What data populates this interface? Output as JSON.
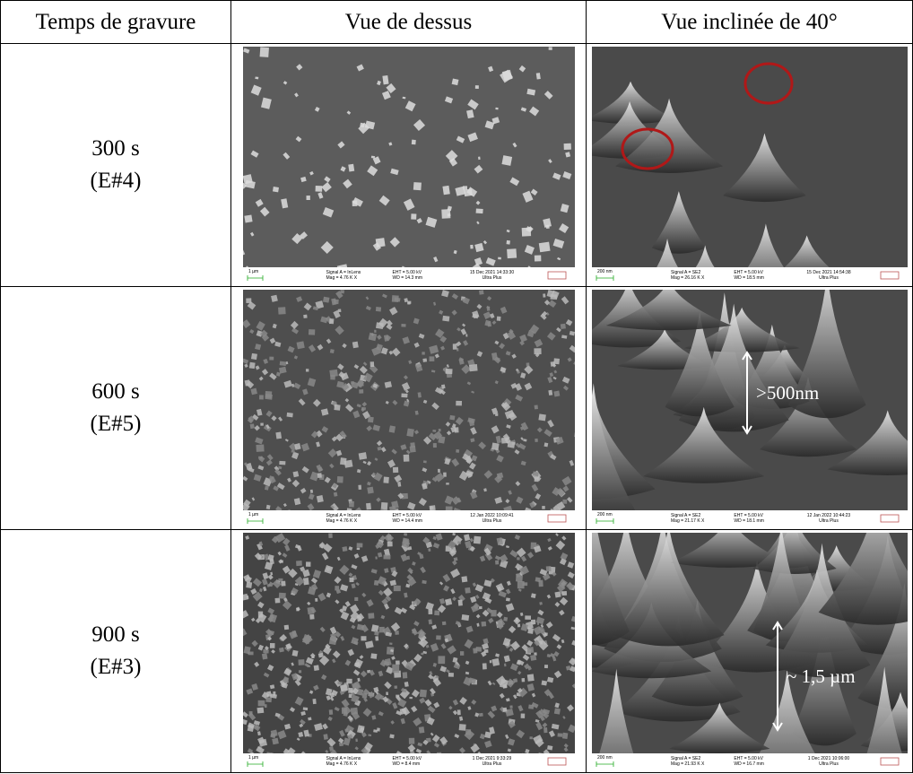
{
  "table": {
    "header": [
      "Temps de gravure",
      "Vue de dessus",
      "Vue inclinée de 40°"
    ],
    "rows": [
      {
        "time": "300 s",
        "sample": "(E#4)",
        "top_view": {
          "scale": "1 µm",
          "signal": "Signal A = InLens",
          "mag": "Mag =  4.76 K X",
          "eht": "EHT =  5.00 kV",
          "wd": "WD = 14.3 mm",
          "date": "15 Dec 2021 14:33:30",
          "instrument": "Ultra Plus"
        },
        "tilted_view": {
          "scale": "200 nm",
          "signal": "Signal A = SE2",
          "mag": "Mag =  26.16 K X",
          "eht": "EHT =  5.00 kV",
          "wd": "WD = 18.5 mm",
          "date": "15 Dec 2021 14:54:38",
          "instrument": "Ultra Plus"
        }
      },
      {
        "time": "600 s",
        "sample": "(E#5)",
        "top_view": {
          "scale": "1 µm",
          "signal": "Signal A = InLens",
          "mag": "Mag =  4.76 K X",
          "eht": "EHT =  5.00 kV",
          "wd": "WD = 14.4 mm",
          "date": "12 Jan 2022 10:09:41",
          "instrument": "Ultra Plus"
        },
        "tilted_view": {
          "scale": "200 nm",
          "signal": "Signal A = SE2",
          "mag": "Mag =  21.17 K X",
          "eht": "EHT =  5.00 kV",
          "wd": "WD = 18.1 mm",
          "date": "12 Jan 2022 10:44:23",
          "instrument": "Ultra Plus",
          "annotation": ">500nm"
        }
      },
      {
        "time": "900 s",
        "sample": "(E#3)",
        "top_view": {
          "scale": "1 µm",
          "signal": "Signal A = InLens",
          "mag": "Mag =  4.76 K X",
          "eht": "EHT =  5.00 kV",
          "wd": "WD = 8.4 mm",
          "date": "1 Dec 2021  9:33:29",
          "instrument": "Ultra Plus"
        },
        "tilted_view": {
          "scale": "200 nm",
          "signal": "Signal A = SE2",
          "mag": "Mag =  21.93 K X",
          "eht": "EHT =  5.00 kV",
          "wd": "WD = 16.7 mm",
          "date": "1 Dec 2021  10:06:00",
          "instrument": "Ultra Plus",
          "annotation": "~ 1,5 µm"
        }
      }
    ]
  }
}
